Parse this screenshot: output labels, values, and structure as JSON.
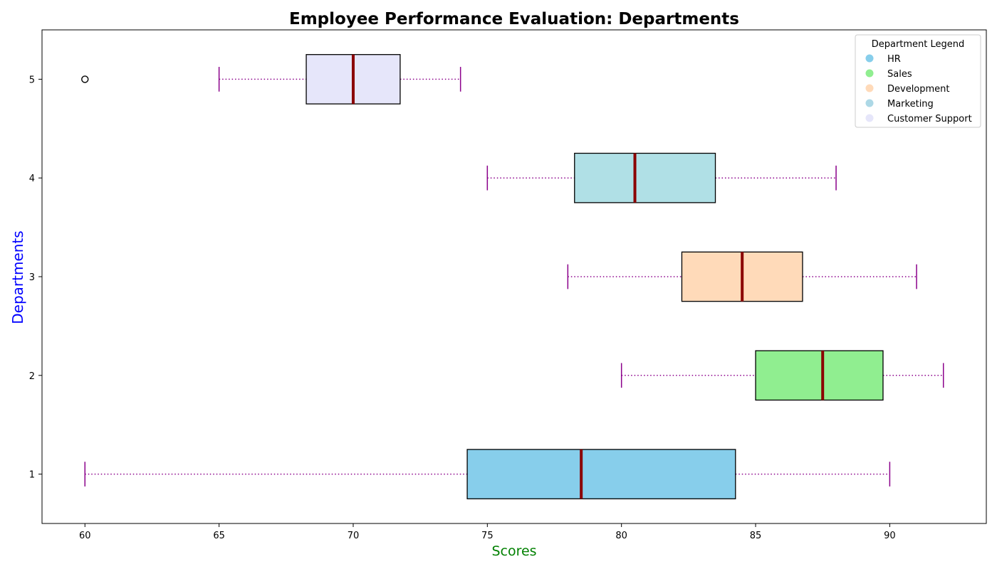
{
  "chart_data": {
    "type": "boxplot",
    "orientation": "horizontal",
    "title": "Employee Performance Evaluation: Departments",
    "xlabel": "Scores",
    "ylabel": "Departments",
    "title_color": "#000000",
    "xlabel_color": "#008000",
    "ylabel_color": "#0000ff",
    "xlim": [
      58.4,
      93.6
    ],
    "ylim": [
      0.5,
      5.5
    ],
    "x_ticks": [
      60,
      65,
      70,
      75,
      80,
      85,
      90
    ],
    "y_ticks": [
      1,
      2,
      3,
      4,
      5
    ],
    "grid": false,
    "median_color": "#8b0000",
    "whisker_color": "#8b008b",
    "whisker_style": "dotted",
    "box_edge_color": "#000000",
    "boxes": [
      {
        "position": 1,
        "whisker_low": 60,
        "q1": 74.25,
        "median": 78.5,
        "q3": 84.25,
        "whisker_high": 90,
        "outliers": [],
        "color": "#87ceeb"
      },
      {
        "position": 2,
        "whisker_low": 80,
        "q1": 85,
        "median": 87.5,
        "q3": 89.75,
        "whisker_high": 92,
        "outliers": [],
        "color": "#90ee90"
      },
      {
        "position": 3,
        "whisker_low": 78,
        "q1": 82.25,
        "median": 84.5,
        "q3": 86.75,
        "whisker_high": 91,
        "outliers": [],
        "color": "#ffdab9"
      },
      {
        "position": 4,
        "whisker_low": 75,
        "q1": 78.25,
        "median": 80.5,
        "q3": 83.5,
        "whisker_high": 88,
        "outliers": [],
        "color": "#b0e0e6"
      },
      {
        "position": 5,
        "whisker_low": 65,
        "q1": 68.25,
        "median": 70,
        "q3": 71.75,
        "whisker_high": 74,
        "outliers": [
          60
        ],
        "color": "#e6e6fa"
      }
    ],
    "legend": {
      "title": "Department Legend",
      "placement": "top-right",
      "entries": [
        {
          "label": "HR",
          "color": "#87ceeb"
        },
        {
          "label": "Sales",
          "color": "#90ee90"
        },
        {
          "label": "Development",
          "color": "#ffdab9"
        },
        {
          "label": "Marketing",
          "color": "#add8e6"
        },
        {
          "label": "Customer Support",
          "color": "#e6e6fa"
        }
      ]
    }
  }
}
